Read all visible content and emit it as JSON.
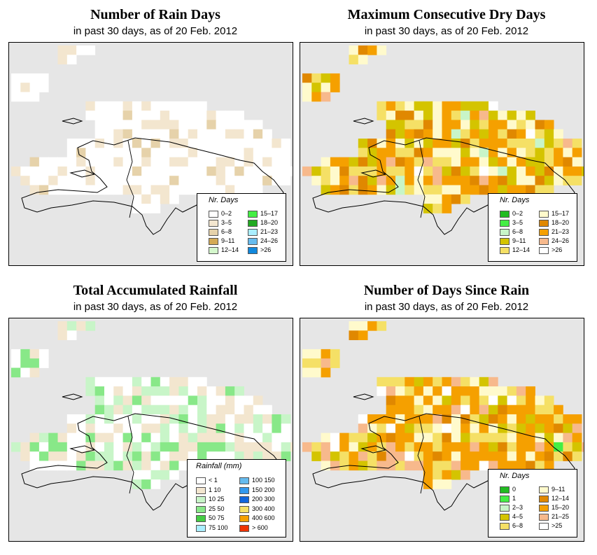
{
  "colors": {
    "ocean": "#e6e6e6",
    "coast": "#000000"
  },
  "panels": [
    {
      "title": "Number of Rain Days",
      "subtitle": "in past 30 days, as of  20 Feb. 2012",
      "legend": {
        "title": "Nr. Days",
        "items": [
          {
            "label": "0–2",
            "color": "#ffffff"
          },
          {
            "label": "3–5",
            "color": "#f3e6cf"
          },
          {
            "label": "6–8",
            "color": "#e6d2aa"
          },
          {
            "label": "9–11",
            "color": "#d4aa55"
          },
          {
            "label": "12–14",
            "color": "#d4f7cc"
          },
          {
            "label": "15–17",
            "color": "#44ee44"
          },
          {
            "label": "18–20",
            "color": "#22aa22"
          },
          {
            "label": "21–23",
            "color": "#aaeeff"
          },
          {
            "label": "24–26",
            "color": "#66bbee"
          },
          {
            "label": ">26",
            "color": "#1188dd"
          }
        ]
      }
    },
    {
      "title": "Maximum Consecutive Dry Days",
      "subtitle": "in past 30 days, as of  20 Feb. 2012",
      "legend": {
        "title": "Nr. Days",
        "items": [
          {
            "label": "0–2",
            "color": "#22bb22"
          },
          {
            "label": "3–5",
            "color": "#44ee44"
          },
          {
            "label": "6–8",
            "color": "#c8f5c8"
          },
          {
            "label": "9–11",
            "color": "#d4c400"
          },
          {
            "label": "12–14",
            "color": "#f5e066"
          },
          {
            "label": "15–17",
            "color": "#fffacc"
          },
          {
            "label": "18–20",
            "color": "#e08800"
          },
          {
            "label": "21–23",
            "color": "#f5a000"
          },
          {
            "label": "24–26",
            "color": "#f7b98c"
          },
          {
            "label": ">26",
            "color": "#ffffff"
          }
        ]
      }
    },
    {
      "title": "Total Accumulated Rainfall",
      "subtitle": "in past 30 days, as of  20 Feb. 2012",
      "legend": {
        "title": "Rainfall (mm)",
        "items": [
          {
            "label": "< 1",
            "color": "#ffffff"
          },
          {
            "label": "1    10",
            "color": "#f3e6cf"
          },
          {
            "label": "10    25",
            "color": "#c8f5c8"
          },
          {
            "label": "25    50",
            "color": "#88e888"
          },
          {
            "label": "50    75",
            "color": "#44cc44"
          },
          {
            "label": "75   100",
            "color": "#aaeeff"
          },
          {
            "label": "100   150",
            "color": "#66bbee"
          },
          {
            "label": "150   200",
            "color": "#3399ee"
          },
          {
            "label": "200   300",
            "color": "#1166dd"
          },
          {
            "label": "300   400",
            "color": "#f5e066"
          },
          {
            "label": "400   600",
            "color": "#f5a000"
          },
          {
            "label": "> 600",
            "color": "#ee3300"
          }
        ]
      }
    },
    {
      "title": "Number of Days Since Rain",
      "subtitle": "in past 30 days, as of  20 Feb. 2012",
      "legend": {
        "title": "Nr. Days",
        "items": [
          {
            "label": "0",
            "color": "#22bb22"
          },
          {
            "label": "1",
            "color": "#44ee44"
          },
          {
            "label": "2–3",
            "color": "#c8f5c8"
          },
          {
            "label": "4–5",
            "color": "#d4c400"
          },
          {
            "label": "6–8",
            "color": "#f5e066"
          },
          {
            "label": "9–11",
            "color": "#fffacc"
          },
          {
            "label": "12–14",
            "color": "#e08800"
          },
          {
            "label": "15–20",
            "color": "#f5a000"
          },
          {
            "label": "21–25",
            "color": "#f7b98c"
          },
          {
            "label": ">25",
            "color": "#ffffff"
          }
        ]
      }
    }
  ]
}
